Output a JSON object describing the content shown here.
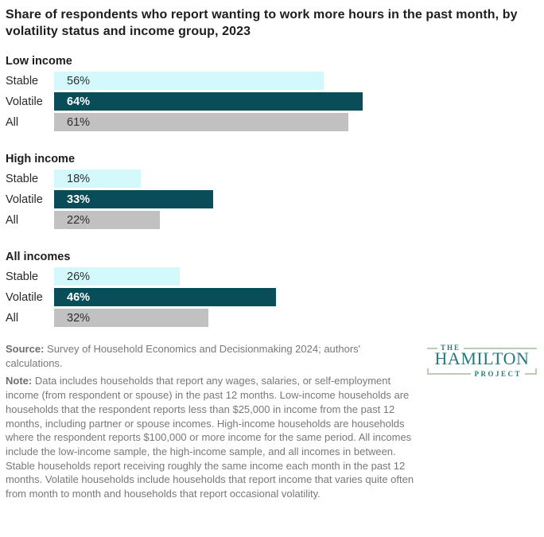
{
  "title": "Share of respondents who report wanting to work more hours in the past month, by volatility status and income group, 2023",
  "chart_data": {
    "type": "bar",
    "orientation": "horizontal",
    "unit": "percent",
    "value_axis_visible": false,
    "xlim": [
      0,
      66
    ],
    "series_labels": [
      "Stable",
      "Volatile",
      "All"
    ],
    "colors": {
      "stable": "#d3f9fd",
      "volatile": "#084d58",
      "all": "#c1c1c2"
    },
    "groups": [
      {
        "name": "Low income",
        "bars": [
          {
            "label": "Stable",
            "value": 56,
            "display": "56%"
          },
          {
            "label": "Volatile",
            "value": 64,
            "display": "64%"
          },
          {
            "label": "All",
            "value": 61,
            "display": "61%"
          }
        ]
      },
      {
        "name": "High income",
        "bars": [
          {
            "label": "Stable",
            "value": 18,
            "display": "18%"
          },
          {
            "label": "Volatile",
            "value": 33,
            "display": "33%"
          },
          {
            "label": "All",
            "value": 22,
            "display": "22%"
          }
        ]
      },
      {
        "name": "All incomes",
        "bars": [
          {
            "label": "Stable",
            "value": 26,
            "display": "26%"
          },
          {
            "label": "Volatile",
            "value": 46,
            "display": "46%"
          },
          {
            "label": "All",
            "value": 32,
            "display": "32%"
          }
        ]
      }
    ]
  },
  "footer": {
    "source_label": "Source:",
    "source_text": " Survey of Household Economics and Decisionmaking 2024; authors' calculations.",
    "note_label": "Note:",
    "note_text": " Data includes households that report any wages, salaries, or self-employment income (from respondent or spouse) in the past 12 months. Low-income households are households that the respondent reports less than $25,000 in income from the past 12 months, including partner or spouse incomes. High-income households are households where the respondent reports $100,000 or more income for the same period. All incomes include the low-income sample, the high-income sample, and all incomes in between. Stable households report receiving roughly the same income each month in the past 12 months. Volatile households include households that report income that varies quite often from month to month and households that report occasional volatility."
  },
  "logo": {
    "line1": "THE",
    "line2": "HAMILTON",
    "line3": "PROJECT",
    "text_color": "#26797c",
    "border_color": "#b9cdb3"
  }
}
